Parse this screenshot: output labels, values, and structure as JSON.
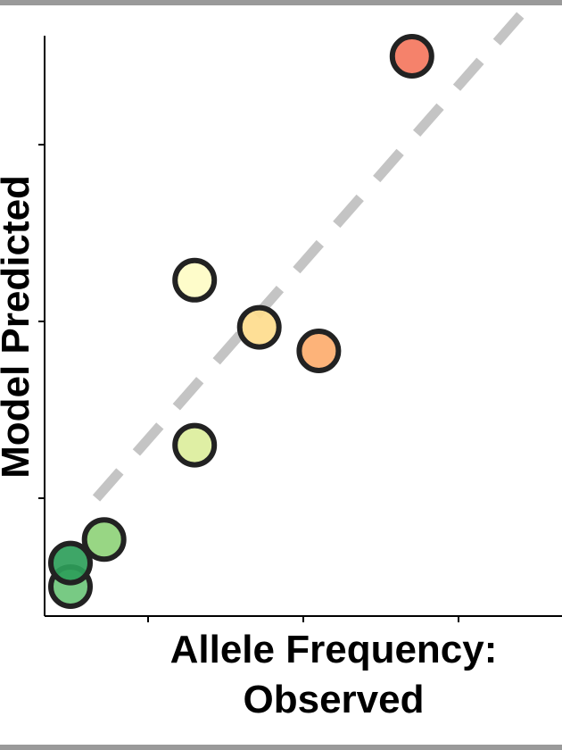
{
  "chart_data": {
    "type": "scatter",
    "xlabel": [
      "Allele Frequency:",
      "Observed"
    ],
    "ylabel": "Model Predicted",
    "xlim": [
      0,
      1
    ],
    "ylim": [
      0,
      1
    ],
    "x_ticks": [
      0.2,
      0.5,
      0.8
    ],
    "y_ticks": [
      0.2,
      0.5,
      0.8
    ],
    "x_tick_labels": [],
    "y_tick_labels": [],
    "reference_line": {
      "style": "dashed",
      "color": "#c4c4c4",
      "from": [
        0.1,
        0.2
      ],
      "to": [
        1.0,
        1.1
      ]
    },
    "grid": false,
    "legend": "none",
    "points": [
      {
        "x": 0.05,
        "y": 0.05,
        "color": "#6cc57a"
      },
      {
        "x": 0.05,
        "y": 0.09,
        "color": "#2e9e5a"
      },
      {
        "x": 0.115,
        "y": 0.13,
        "color": "#8fd279"
      },
      {
        "x": 0.29,
        "y": 0.29,
        "color": "#dcee9c"
      },
      {
        "x": 0.29,
        "y": 0.57,
        "color": "#fefcc6"
      },
      {
        "x": 0.415,
        "y": 0.49,
        "color": "#fedc8d"
      },
      {
        "x": 0.53,
        "y": 0.45,
        "color": "#fdad6e"
      },
      {
        "x": 0.71,
        "y": 0.95,
        "color": "#f4775e"
      }
    ]
  }
}
